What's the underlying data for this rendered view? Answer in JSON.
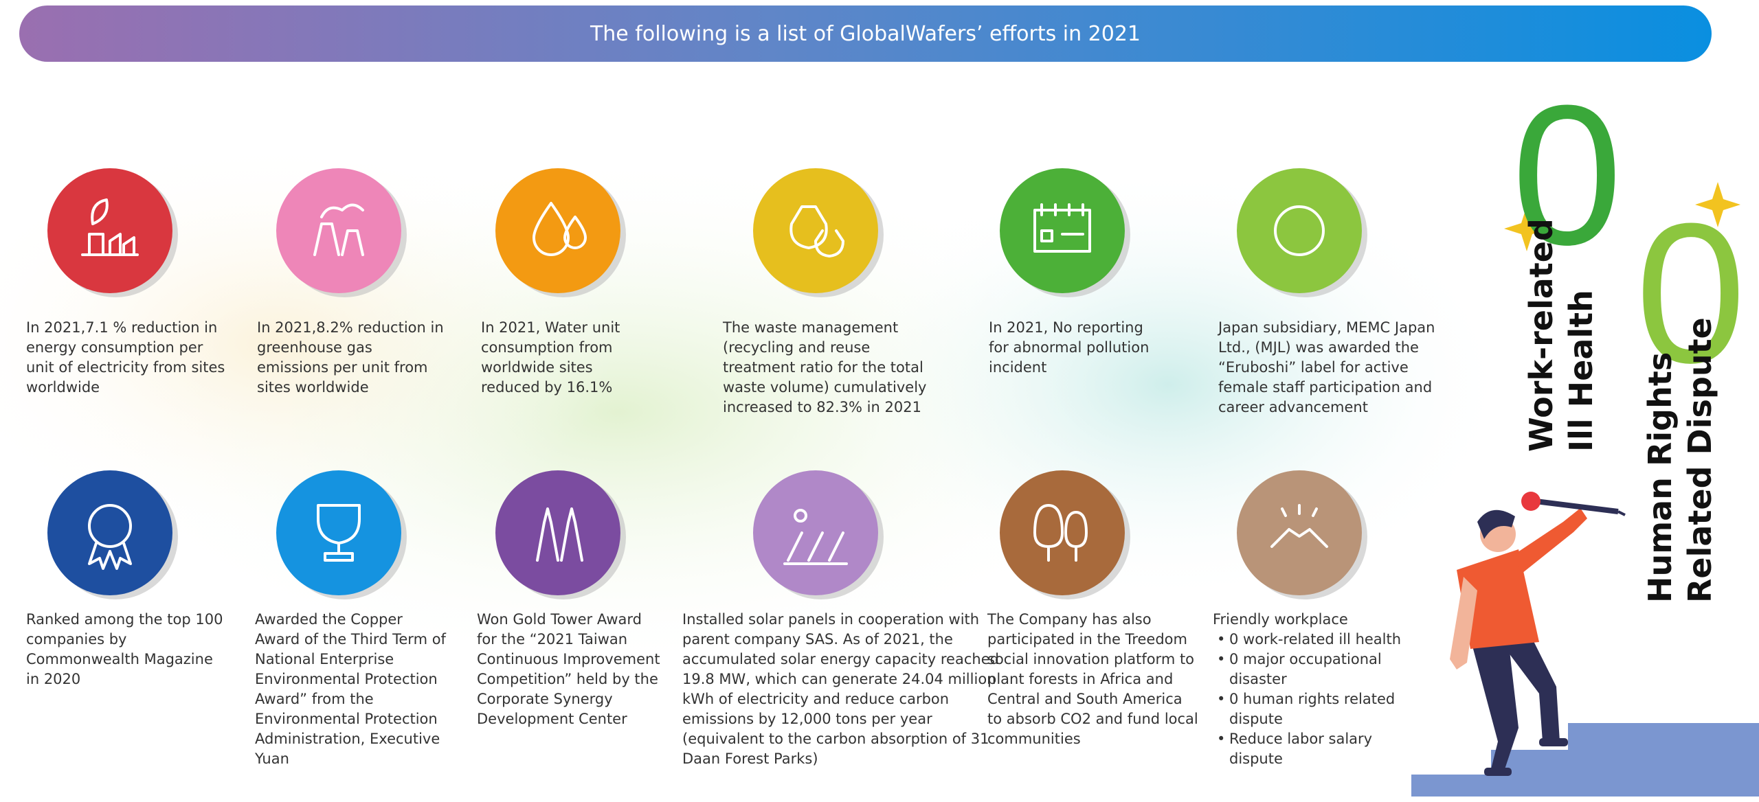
{
  "header": {
    "title": "The following is a list of GlobalWafers’ efforts in 2021"
  },
  "items": [
    {
      "color": "#d9373f",
      "lines": [
        "In 2021,7.1 % reduction in",
        "energy consumption per",
        "unit of electricity from sites",
        "worldwide"
      ]
    },
    {
      "color": "#ee86b8",
      "lines": [
        "In 2021,8.2% reduction in",
        "greenhouse gas",
        "emissions per unit from",
        "sites worldwide"
      ]
    },
    {
      "color": "#f39a12",
      "lines": [
        "In 2021, Water unit",
        "consumption from",
        "worldwide sites",
        "reduced by 16.1%"
      ]
    },
    {
      "color": "#e6bf1e",
      "lines": [
        "The waste management",
        "(recycling and reuse",
        "treatment ratio for the total",
        "waste volume) cumulatively",
        "increased to 82.3% in 2021"
      ]
    },
    {
      "color": "#4cb038",
      "lines": [
        "In 2021, No reporting",
        "for abnormal pollution",
        "incident"
      ]
    },
    {
      "color": "#8cc63f",
      "lines": [
        "Japan subsidiary, MEMC Japan",
        "Ltd., (MJL) was awarded the",
        "“Eruboshi” label for active",
        "female staff participation and",
        "career advancement"
      ]
    },
    {
      "color": "#1e4fa0",
      "lines": [
        "Ranked among the top 100",
        "companies by",
        "Commonwealth Magazine",
        "in 2020"
      ]
    },
    {
      "color": "#1593e0",
      "lines": [
        "Awarded the Copper",
        "Award of the Third Term of",
        "National Enterprise",
        "Environmental Protection",
        "Award” from the",
        "Environmental Protection",
        "Administration, Executive",
        "Yuan"
      ]
    },
    {
      "color": "#7b4ca0",
      "lines": [
        "Won Gold Tower Award",
        "for the “2021 Taiwan",
        "Continuous Improvement",
        "Competition” held by the",
        "Corporate Synergy",
        "Development Center"
      ]
    },
    {
      "color": "#b088c8",
      "lines": [
        "Installed solar panels in cooperation with",
        "parent company SAS. As of 2021, the",
        "accumulated solar energy capacity reached",
        "19.8 MW, which can generate 24.04 million",
        "kWh of electricity and reduce carbon",
        "emissions by 12,000 tons per year",
        "(equivalent to the carbon absorption of 31",
        "Daan Forest Parks)"
      ]
    },
    {
      "color": "#a86a3c",
      "lines": [
        "The Company has also",
        "participated in the Treedom",
        "social innovation platform to",
        "plant forests in Africa and",
        "Central and South America",
        "to absorb CO2 and fund local",
        "communities"
      ]
    },
    {
      "color": "#b99478",
      "lines": [
        "Friendly workplace"
      ],
      "bullets": [
        [
          "0 work-related ill health"
        ],
        [
          "0 major occupational",
          "disaster"
        ],
        [
          "0 human rights related",
          "dispute"
        ],
        [
          "Reduce labor salary",
          "dispute"
        ]
      ]
    }
  ],
  "stats": [
    {
      "value": 0,
      "color": "#3aa83a",
      "label": [
        "Work-related",
        "Ill Health"
      ]
    },
    {
      "value": 0,
      "color": "#8cc63f",
      "label": [
        "Human Rights",
        "Related Dispute"
      ]
    }
  ]
}
